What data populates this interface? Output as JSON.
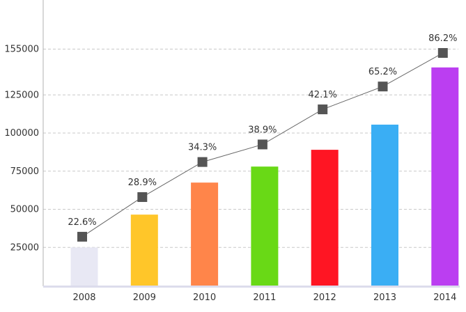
{
  "chart_data": {
    "type": "bar",
    "categories": [
      "2008",
      "2009",
      "2010",
      "2011",
      "2012",
      "2013",
      "2014"
    ],
    "values": [
      25000,
      46500,
      67500,
      78000,
      89000,
      105500,
      143000
    ],
    "bar_colors": [
      "#e8e8f4",
      "#ffc629",
      "#ff854a",
      "#69d916",
      "#ff1523",
      "#3aaef4",
      "#bb3ef1"
    ],
    "y_ticks": [
      25000,
      50000,
      75000,
      100000,
      125000,
      155000
    ],
    "y_tick_labels": [
      "25000",
      "50000",
      "75000",
      "100000",
      "125000",
      "155000"
    ],
    "ylim": [
      0,
      185000
    ],
    "grid": true,
    "line_series": {
      "values": [
        22.6,
        28.9,
        34.3,
        38.9,
        42.1,
        65.2,
        86.2
      ],
      "labels": [
        "22.6%",
        "28.9%",
        "34.3%",
        "38.9%",
        "42.1%",
        "65.2%",
        "86.2%"
      ],
      "y_on_left_axis": [
        32000,
        58000,
        81000,
        92500,
        115500,
        130500,
        152500
      ],
      "marker": "square",
      "marker_color": "#555555",
      "line_color": "#666666"
    },
    "title": "",
    "xlabel": "",
    "ylabel": ""
  }
}
